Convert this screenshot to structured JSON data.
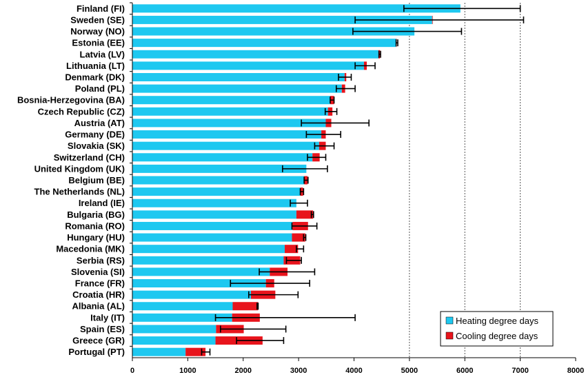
{
  "chart_data": {
    "type": "bar",
    "orientation": "horizontal",
    "stacked": true,
    "categories": [
      "Finland (FI)",
      "Sweden (SE)",
      "Norway (NO)",
      "Estonia (EE)",
      "Latvia (LV)",
      "Lithuania (LT)",
      "Denmark (DK)",
      "Poland (PL)",
      "Bosnia-Herzegovina (BA)",
      "Czech Republic (CZ)",
      "Austria (AT)",
      "Germany (DE)",
      "Slovakia (SK)",
      "Switzerland (CH)",
      "United Kingdom (UK)",
      "Belgium (BE)",
      "The Netherlands (NL)",
      "Ireland (IE)",
      "Bulgaria (BG)",
      "Romania (RO)",
      "Hungary (HU)",
      "Macedonia (MK)",
      "Serbia (RS)",
      "Slovenia (SI)",
      "France (FR)",
      "Croatia (HR)",
      "Albania (AL)",
      "Italy (IT)",
      "Spain (ES)",
      "Greece (GR)",
      "Portugal (PT)"
    ],
    "series": [
      {
        "name": "Heating degree days",
        "color": "#1EC8F0",
        "values": [
          5920,
          5410,
          5090,
          4760,
          4440,
          4180,
          3830,
          3780,
          3570,
          3530,
          3490,
          3410,
          3370,
          3250,
          3140,
          3100,
          3030,
          2960,
          2960,
          2890,
          2880,
          2750,
          2730,
          2480,
          2410,
          2140,
          1810,
          1800,
          1510,
          1500,
          960
        ]
      },
      {
        "name": "Cooling degree days",
        "color": "#E8141C",
        "values": [
          0,
          10,
          0,
          10,
          30,
          50,
          30,
          60,
          70,
          80,
          100,
          80,
          120,
          130,
          0,
          60,
          50,
          0,
          300,
          280,
          240,
          240,
          300,
          320,
          150,
          440,
          460,
          500,
          500,
          850,
          360
        ]
      }
    ],
    "error_bars": [
      [
        4900,
        7000
      ],
      [
        4020,
        7060
      ],
      [
        3980,
        5940
      ],
      [
        4760,
        4790
      ],
      [
        4450,
        4480
      ],
      [
        4020,
        4380
      ],
      [
        3720,
        3950
      ],
      [
        3680,
        4020
      ],
      [
        3570,
        3640
      ],
      [
        3480,
        3690
      ],
      [
        3050,
        4270
      ],
      [
        3140,
        3760
      ],
      [
        3290,
        3640
      ],
      [
        3160,
        3490
      ],
      [
        2710,
        3520
      ],
      [
        3100,
        3170
      ],
      [
        3030,
        3090
      ],
      [
        2850,
        3160
      ],
      [
        3230,
        3270
      ],
      [
        2880,
        3330
      ],
      [
        3090,
        3130
      ],
      [
        2960,
        3090
      ],
      [
        2780,
        3050
      ],
      [
        2290,
        3290
      ],
      [
        1770,
        3200
      ],
      [
        2100,
        2990
      ],
      [
        2250,
        2270
      ],
      [
        1500,
        4020
      ],
      [
        1590,
        2770
      ],
      [
        1880,
        2730
      ],
      [
        1250,
        1400
      ]
    ],
    "xlim": [
      0,
      8000
    ],
    "xticks": [
      0,
      1000,
      2000,
      3000,
      4000,
      5000,
      6000,
      7000,
      8000
    ],
    "xticklabels": [
      "0",
      "1000",
      "2000",
      "3000",
      "4000",
      "5000",
      "6000",
      "7000",
      "8000"
    ],
    "grid": "vertical dashed at 5000, 6000, 7000",
    "legend": "bottom-right",
    "title": "",
    "xlabel": "",
    "ylabel": ""
  }
}
